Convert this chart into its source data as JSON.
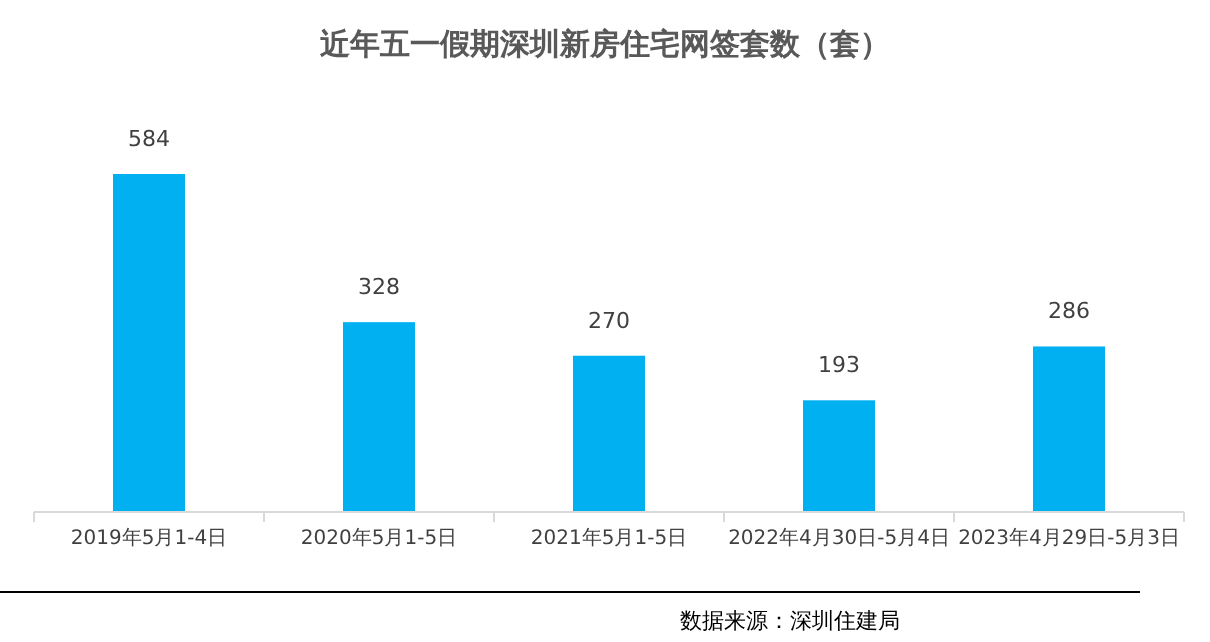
{
  "chart_data": {
    "type": "bar",
    "title": "近年五一假期深圳新房住宅网签套数（套）",
    "categories": [
      "2019年5月1-4日",
      "2020年5月1-5日",
      "2021年5月1-5日",
      "2022年4月30日-5月4日",
      "2023年4月29日-5月3日"
    ],
    "values": [
      584,
      328,
      270,
      193,
      286
    ],
    "color": "#00b0f0",
    "data_labels": true,
    "annotations": [
      "数据来源：深圳住建局"
    ]
  }
}
